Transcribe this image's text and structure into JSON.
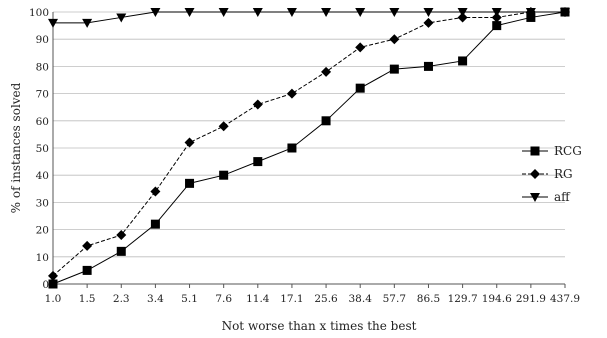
{
  "chart_data": {
    "type": "line",
    "title": "",
    "xlabel": "Not worse than x times the best",
    "ylabel": "% of instances solved",
    "categories": [
      "1.0",
      "1.5",
      "2.3",
      "3.4",
      "5.1",
      "7.6",
      "11.4",
      "17.1",
      "25.6",
      "38.4",
      "57.7",
      "86.5",
      "129.7",
      "194.6",
      "291.9",
      "437.9"
    ],
    "yticks": [
      0,
      10,
      20,
      30,
      40,
      50,
      60,
      70,
      80,
      90,
      100
    ],
    "ylim": [
      0,
      100
    ],
    "grid": "horizontal",
    "legend_position": "right",
    "series": [
      {
        "name": "RCG",
        "marker": "square",
        "dash": "solid",
        "color": "#000000",
        "values": [
          0,
          5,
          12,
          22,
          37,
          40,
          45,
          50,
          60,
          72,
          79,
          80,
          82,
          95,
          98,
          100
        ]
      },
      {
        "name": "RG",
        "marker": "diamond",
        "dash": "dashed",
        "color": "#000000",
        "values": [
          3,
          14,
          18,
          34,
          52,
          58,
          66,
          70,
          78,
          87,
          90,
          96,
          98,
          98,
          100,
          100
        ]
      },
      {
        "name": "aff",
        "marker": "triangle-down",
        "dash": "solid",
        "color": "#000000",
        "values": [
          96,
          96,
          98,
          100,
          100,
          100,
          100,
          100,
          100,
          100,
          100,
          100,
          100,
          100,
          100,
          100
        ]
      }
    ]
  }
}
